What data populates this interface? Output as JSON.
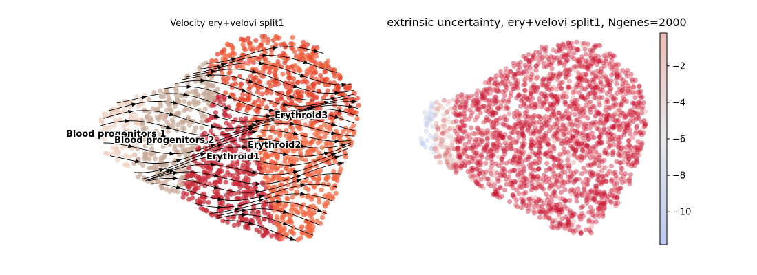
{
  "chart_data": [
    {
      "type": "scatter",
      "subtype": "umap-velocity-stream",
      "title": "Velocity ery+velovi split1",
      "xlabel": "",
      "ylabel": "",
      "axes_visible": false,
      "grid": false,
      "legend": "on-data",
      "clusters": [
        {
          "name": "Blood progenitors 1",
          "color": "#efd3c4"
        },
        {
          "name": "Blood progenitors 2",
          "color": "#c7ab98"
        },
        {
          "name": "Erythroid1",
          "color": "#c72a37"
        },
        {
          "name": "Erythroid2",
          "color": "#f2643d"
        },
        {
          "name": "Erythroid3",
          "color": "#e8462c"
        }
      ]
    },
    {
      "type": "scatter",
      "subtype": "umap-continuous",
      "title": "extrinsic uncertainty, ery+velovi split1, Ngenes=2000",
      "xlabel": "",
      "ylabel": "",
      "axes_visible": false,
      "grid": false,
      "colormap": "coolwarm",
      "colorbar": {
        "position": "right",
        "range": [
          -11.8,
          -0.2
        ],
        "ticks": [
          -2,
          -4,
          -6,
          -8,
          -10
        ],
        "tick_labels": [
          "−2",
          "−4",
          "−6",
          "−8",
          "−10"
        ]
      }
    }
  ]
}
